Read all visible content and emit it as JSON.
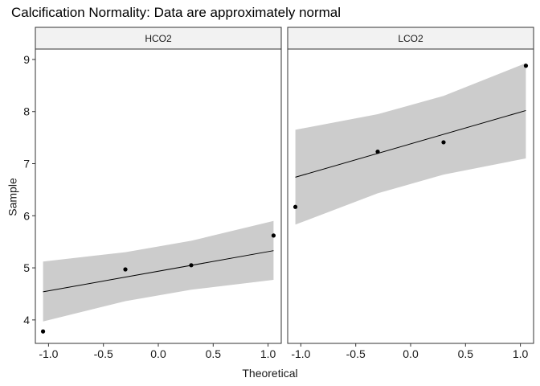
{
  "chart_data": {
    "type": "scatter",
    "title": "Calcification Normality: Data are approximately normal",
    "xlabel": "Theoretical",
    "ylabel": "Sample",
    "xlim": [
      -1.12,
      1.12
    ],
    "ylim": [
      3.55,
      9.2
    ],
    "x_ticks": [
      "-1.0",
      "-0.5",
      "0.0",
      "0.5",
      "1.0"
    ],
    "x_tick_values": [
      -1.0,
      -0.5,
      0.0,
      0.5,
      1.0
    ],
    "y_ticks": [
      "4",
      "5",
      "6",
      "7",
      "8",
      "9"
    ],
    "y_tick_values": [
      4,
      5,
      6,
      7,
      8,
      9
    ],
    "grid": false,
    "colors": {
      "points": "#000000",
      "band": "#cccccc",
      "strip": "#f2f2f2",
      "border": "#333333"
    },
    "panels": [
      {
        "strip_label": "HCO2",
        "points": [
          {
            "x": -1.05,
            "y": 3.78
          },
          {
            "x": -0.3,
            "y": 4.97
          },
          {
            "x": 0.3,
            "y": 5.05
          },
          {
            "x": 1.05,
            "y": 5.62
          }
        ],
        "line": [
          {
            "x": -1.05,
            "y": 4.54
          },
          {
            "x": 1.05,
            "y": 5.33
          }
        ],
        "band_upper": [
          {
            "x": -1.05,
            "y": 5.12
          },
          {
            "x": -0.3,
            "y": 5.3
          },
          {
            "x": 0.3,
            "y": 5.52
          },
          {
            "x": 1.05,
            "y": 5.9
          }
        ],
        "band_lower": [
          {
            "x": -1.05,
            "y": 3.97
          },
          {
            "x": -0.3,
            "y": 4.36
          },
          {
            "x": 0.3,
            "y": 4.58
          },
          {
            "x": 1.05,
            "y": 4.77
          }
        ]
      },
      {
        "strip_label": "LCO2",
        "points": [
          {
            "x": -1.05,
            "y": 6.17
          },
          {
            "x": -0.3,
            "y": 7.23
          },
          {
            "x": 0.3,
            "y": 7.41
          },
          {
            "x": 1.05,
            "y": 8.88
          }
        ],
        "line": [
          {
            "x": -1.05,
            "y": 6.74
          },
          {
            "x": 1.05,
            "y": 8.02
          }
        ],
        "band_upper": [
          {
            "x": -1.05,
            "y": 7.65
          },
          {
            "x": -0.3,
            "y": 7.95
          },
          {
            "x": 0.3,
            "y": 8.3
          },
          {
            "x": 1.05,
            "y": 8.93
          }
        ],
        "band_lower": [
          {
            "x": -1.05,
            "y": 5.83
          },
          {
            "x": -0.3,
            "y": 6.43
          },
          {
            "x": 0.3,
            "y": 6.79
          },
          {
            "x": 1.05,
            "y": 7.1
          }
        ]
      }
    ]
  }
}
